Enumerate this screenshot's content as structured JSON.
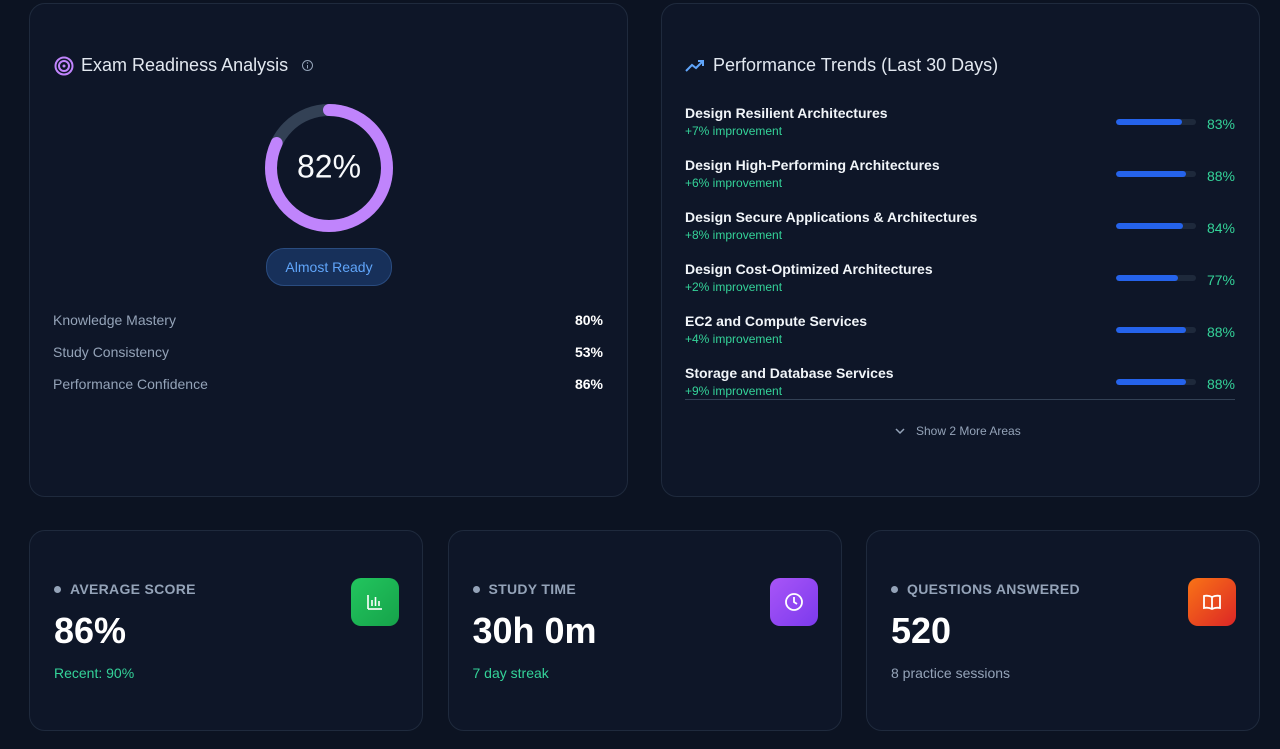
{
  "readiness": {
    "title": "Exam Readiness Analysis",
    "score": {
      "value": 82,
      "label": "82%"
    },
    "status": "Almost Ready",
    "metrics": [
      {
        "label": "Knowledge Mastery",
        "value": "80%"
      },
      {
        "label": "Study Consistency",
        "value": "53%"
      },
      {
        "label": "Performance Confidence",
        "value": "86%"
      }
    ]
  },
  "trends": {
    "title": "Performance Trends (Last 30 Days)",
    "items": [
      {
        "name": "Design Resilient Architectures",
        "change": "+7% improvement",
        "value": 83,
        "label": "83%"
      },
      {
        "name": "Design High-Performing Architectures",
        "change": "+6% improvement",
        "value": 88,
        "label": "88%"
      },
      {
        "name": "Design Secure Applications & Architectures",
        "change": "+8% improvement",
        "value": 84,
        "label": "84%"
      },
      {
        "name": "Design Cost-Optimized Architectures",
        "change": "+2% improvement",
        "value": 77,
        "label": "77%"
      },
      {
        "name": "EC2 and Compute Services",
        "change": "+4% improvement",
        "value": 88,
        "label": "88%"
      },
      {
        "name": "Storage and Database Services",
        "change": "+9% improvement",
        "value": 88,
        "label": "88%"
      }
    ],
    "more": "Show 2 More Areas"
  },
  "stats": [
    {
      "label": "AVERAGE SCORE",
      "value": "86%",
      "note": "Recent: 90%"
    },
    {
      "label": "STUDY TIME",
      "value": "30h 0m",
      "note": "7 day streak"
    },
    {
      "label": "QUESTIONS ANSWERED",
      "value": "520",
      "note": "8 practice sessions"
    }
  ]
}
